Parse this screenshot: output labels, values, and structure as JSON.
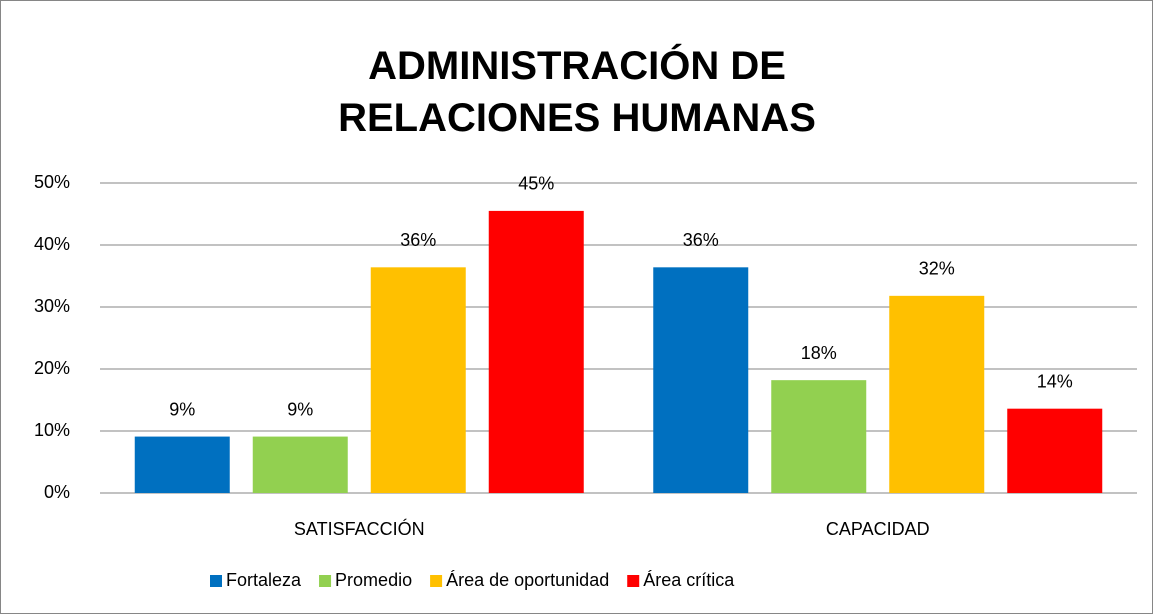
{
  "chart_data": {
    "type": "bar",
    "title": "ADMINISTRACIÓN DE RELACIONES HUMANAS",
    "categories": [
      "SATISFACCIÓN",
      "CAPACIDAD"
    ],
    "series": [
      {
        "name": "Fortaleza",
        "color": "#0070c0",
        "values": [
          9.1,
          36.4
        ],
        "value_labels": [
          "9%",
          "36%"
        ]
      },
      {
        "name": "Promedio",
        "color": "#92d050",
        "values": [
          9.1,
          18.2
        ],
        "value_labels": [
          "9%",
          "18%"
        ]
      },
      {
        "name": "Área de oportunidad",
        "color": "#ffc000",
        "values": [
          36.4,
          31.8
        ],
        "value_labels": [
          "36%",
          "32%"
        ]
      },
      {
        "name": "Área crítica",
        "color": "#ff0000",
        "values": [
          45.5,
          13.6
        ],
        "value_labels": [
          "45%",
          "14%"
        ]
      }
    ],
    "ylim": [
      0,
      50
    ],
    "yticks": [
      {
        "value": 0,
        "label": "0%"
      },
      {
        "value": 10,
        "label": "10%"
      },
      {
        "value": 20,
        "label": "20%"
      },
      {
        "value": 30,
        "label": "30%"
      },
      {
        "value": 40,
        "label": "40%"
      },
      {
        "value": 50,
        "label": "50%"
      }
    ],
    "grid": true,
    "legend": "bottom"
  }
}
